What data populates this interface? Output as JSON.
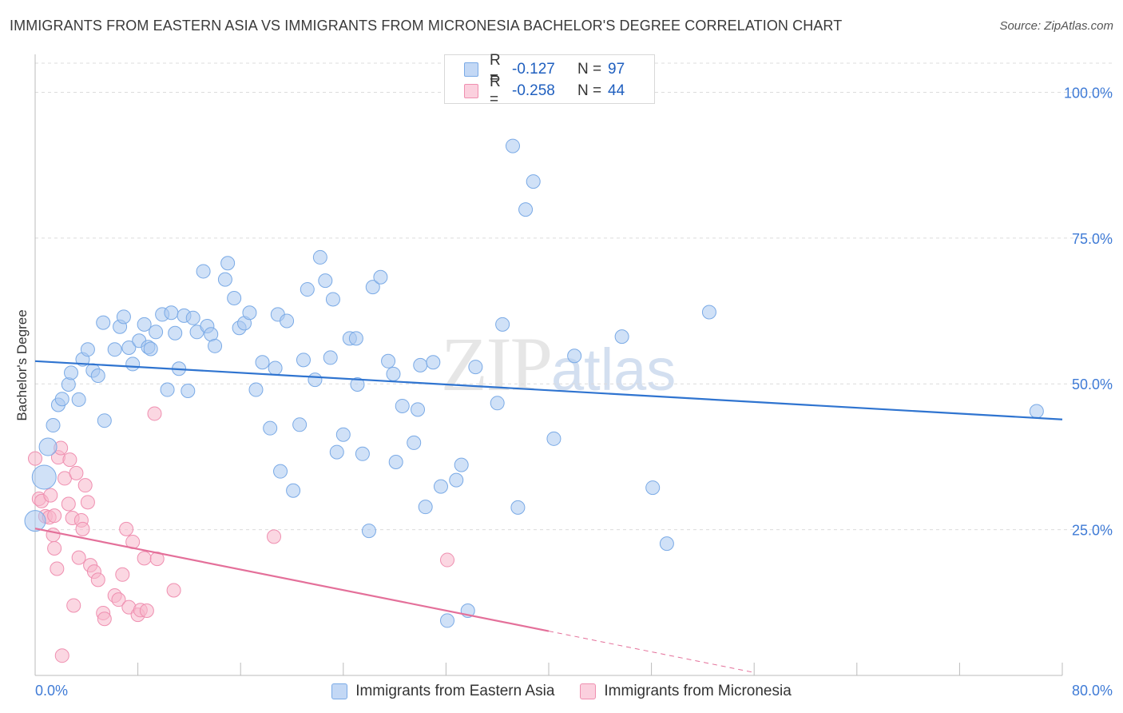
{
  "header": {
    "title": "IMMIGRANTS FROM EASTERN ASIA VS IMMIGRANTS FROM MICRONESIA BACHELOR'S DEGREE CORRELATION CHART",
    "source": "Source: ZipAtlas.com"
  },
  "watermark": {
    "zip": "ZIP",
    "atlas": "atlas"
  },
  "legend": {
    "rows": [
      {
        "r_label": "R =",
        "r_value": "-0.127",
        "n_label": "N =",
        "n_value": "97"
      },
      {
        "r_label": "R =",
        "r_value": "-0.258",
        "n_label": "N =",
        "n_value": "44"
      }
    ]
  },
  "colors": {
    "blue_fill": "#a9c8f0",
    "blue_stroke": "#7aaae6",
    "blue_line": "#2f74d0",
    "pink_fill": "#f7b7cb",
    "pink_stroke": "#ef8fb0",
    "pink_line": "#e4709a",
    "axis_text": "#3f7bd6",
    "grid": "#dcdcdc"
  },
  "chart_data": {
    "type": "scatter",
    "title": "IMMIGRANTS FROM EASTERN ASIA VS IMMIGRANTS FROM MICRONESIA BACHELOR'S DEGREE CORRELATION CHART",
    "xlabel": "",
    "ylabel": "Bachelor's Degree",
    "xlim": [
      0,
      80
    ],
    "ylim": [
      0,
      105
    ],
    "x_tick_labels": [
      "0.0%",
      "80.0%"
    ],
    "y_tick_labels": [
      "25.0%",
      "50.0%",
      "75.0%",
      "100.0%"
    ],
    "y_ticks": [
      25,
      50,
      75,
      100
    ],
    "grid": true,
    "legend_position": "bottom-center",
    "series": [
      {
        "name": "Immigrants from Eastern Asia",
        "color": "#a9c8f0",
        "r": -0.127,
        "n": 97,
        "trend": {
          "x": [
            0,
            80
          ],
          "y": [
            53.9,
            43.9
          ]
        },
        "points": [
          [
            0.0,
            26.5
          ],
          [
            0.7,
            34.0
          ],
          [
            1.0,
            39.2
          ],
          [
            1.4,
            42.9
          ],
          [
            1.8,
            46.4
          ],
          [
            2.1,
            47.4
          ],
          [
            2.6,
            49.9
          ],
          [
            2.8,
            51.9
          ],
          [
            3.4,
            47.3
          ],
          [
            3.7,
            54.2
          ],
          [
            4.1,
            55.9
          ],
          [
            4.5,
            52.3
          ],
          [
            4.9,
            51.4
          ],
          [
            5.4,
            43.7
          ],
          [
            5.3,
            60.5
          ],
          [
            6.2,
            55.9
          ],
          [
            6.6,
            59.8
          ],
          [
            6.9,
            61.5
          ],
          [
            7.3,
            56.2
          ],
          [
            7.6,
            53.4
          ],
          [
            8.1,
            57.4
          ],
          [
            8.5,
            60.2
          ],
          [
            8.8,
            56.3
          ],
          [
            9.4,
            58.9
          ],
          [
            9.9,
            61.9
          ],
          [
            10.3,
            49.0
          ],
          [
            10.6,
            62.2
          ],
          [
            10.9,
            58.7
          ],
          [
            11.2,
            52.6
          ],
          [
            11.6,
            61.7
          ],
          [
            11.9,
            48.8
          ],
          [
            12.3,
            61.3
          ],
          [
            12.6,
            58.9
          ],
          [
            13.1,
            69.3
          ],
          [
            13.4,
            59.9
          ],
          [
            13.7,
            58.5
          ],
          [
            14.0,
            56.5
          ],
          [
            14.8,
            67.9
          ],
          [
            15.0,
            70.7
          ],
          [
            15.5,
            64.7
          ],
          [
            15.9,
            59.6
          ],
          [
            16.3,
            60.4
          ],
          [
            16.7,
            62.2
          ],
          [
            17.2,
            49.0
          ],
          [
            17.7,
            53.7
          ],
          [
            18.3,
            42.4
          ],
          [
            18.7,
            52.7
          ],
          [
            18.9,
            61.9
          ],
          [
            19.1,
            35.0
          ],
          [
            19.6,
            60.8
          ],
          [
            20.1,
            31.7
          ],
          [
            20.6,
            43.0
          ],
          [
            20.9,
            54.1
          ],
          [
            21.2,
            66.2
          ],
          [
            21.8,
            50.7
          ],
          [
            22.2,
            71.7
          ],
          [
            22.6,
            67.7
          ],
          [
            23.0,
            54.5
          ],
          [
            23.2,
            64.5
          ],
          [
            23.5,
            38.3
          ],
          [
            24.0,
            41.3
          ],
          [
            24.5,
            57.8
          ],
          [
            25.1,
            49.9
          ],
          [
            25.5,
            38.0
          ],
          [
            26.0,
            24.8
          ],
          [
            26.3,
            66.6
          ],
          [
            26.9,
            68.3
          ],
          [
            27.5,
            53.9
          ],
          [
            27.9,
            51.7
          ],
          [
            28.1,
            36.6
          ],
          [
            28.6,
            46.2
          ],
          [
            29.5,
            39.9
          ],
          [
            29.8,
            45.6
          ],
          [
            30.0,
            53.2
          ],
          [
            30.4,
            28.9
          ],
          [
            31.0,
            53.7
          ],
          [
            31.6,
            32.4
          ],
          [
            32.1,
            9.4
          ],
          [
            32.8,
            33.5
          ],
          [
            33.2,
            36.1
          ],
          [
            33.7,
            11.1
          ],
          [
            34.3,
            52.9
          ],
          [
            36.0,
            46.7
          ],
          [
            36.4,
            60.2
          ],
          [
            37.2,
            90.8
          ],
          [
            37.6,
            28.8
          ],
          [
            38.2,
            79.9
          ],
          [
            38.8,
            84.7
          ],
          [
            40.4,
            40.6
          ],
          [
            42.0,
            54.8
          ],
          [
            45.7,
            58.1
          ],
          [
            48.1,
            32.2
          ],
          [
            49.2,
            22.6
          ],
          [
            52.5,
            62.3
          ],
          [
            78.0,
            45.3
          ],
          [
            25.0,
            57.8
          ],
          [
            9.0,
            56.0
          ]
        ]
      },
      {
        "name": "Immigrants from Micronesia",
        "color": "#f7b7cb",
        "r": -0.258,
        "n": 44,
        "trend": {
          "x": [
            0,
            40
          ],
          "y": [
            25.2,
            7.6
          ]
        },
        "trend_dashed": {
          "x": [
            40,
            56
          ],
          "y": [
            7.6,
            0.5
          ]
        },
        "points": [
          [
            0.0,
            37.2
          ],
          [
            0.3,
            30.3
          ],
          [
            0.5,
            29.9
          ],
          [
            0.8,
            27.3
          ],
          [
            1.1,
            27.1
          ],
          [
            1.2,
            30.9
          ],
          [
            1.4,
            24.1
          ],
          [
            1.5,
            21.8
          ],
          [
            1.7,
            18.3
          ],
          [
            1.8,
            37.4
          ],
          [
            2.0,
            39.0
          ],
          [
            2.1,
            3.4
          ],
          [
            2.3,
            33.8
          ],
          [
            2.6,
            29.4
          ],
          [
            2.7,
            37.0
          ],
          [
            2.9,
            27.0
          ],
          [
            3.0,
            12.0
          ],
          [
            3.2,
            34.7
          ],
          [
            3.4,
            20.2
          ],
          [
            3.6,
            26.6
          ],
          [
            3.7,
            25.1
          ],
          [
            3.9,
            32.6
          ],
          [
            4.1,
            29.7
          ],
          [
            4.3,
            18.9
          ],
          [
            4.6,
            17.8
          ],
          [
            4.9,
            16.4
          ],
          [
            5.3,
            10.7
          ],
          [
            5.4,
            9.7
          ],
          [
            6.2,
            13.7
          ],
          [
            6.5,
            13.0
          ],
          [
            6.8,
            17.3
          ],
          [
            7.1,
            25.1
          ],
          [
            7.3,
            11.7
          ],
          [
            7.6,
            22.9
          ],
          [
            8.0,
            10.4
          ],
          [
            8.2,
            11.2
          ],
          [
            8.5,
            20.1
          ],
          [
            8.7,
            11.1
          ],
          [
            9.3,
            44.9
          ],
          [
            9.5,
            20.0
          ],
          [
            10.8,
            14.6
          ],
          [
            18.6,
            23.8
          ],
          [
            32.1,
            19.8
          ],
          [
            1.5,
            27.4
          ]
        ]
      }
    ]
  },
  "bottom_legend": {
    "items": [
      "Immigrants from Eastern Asia",
      "Immigrants from Micronesia"
    ]
  },
  "axis": {
    "x_min_label": "0.0%",
    "x_max_label": "80.0%",
    "y_label": "Bachelor's Degree"
  }
}
